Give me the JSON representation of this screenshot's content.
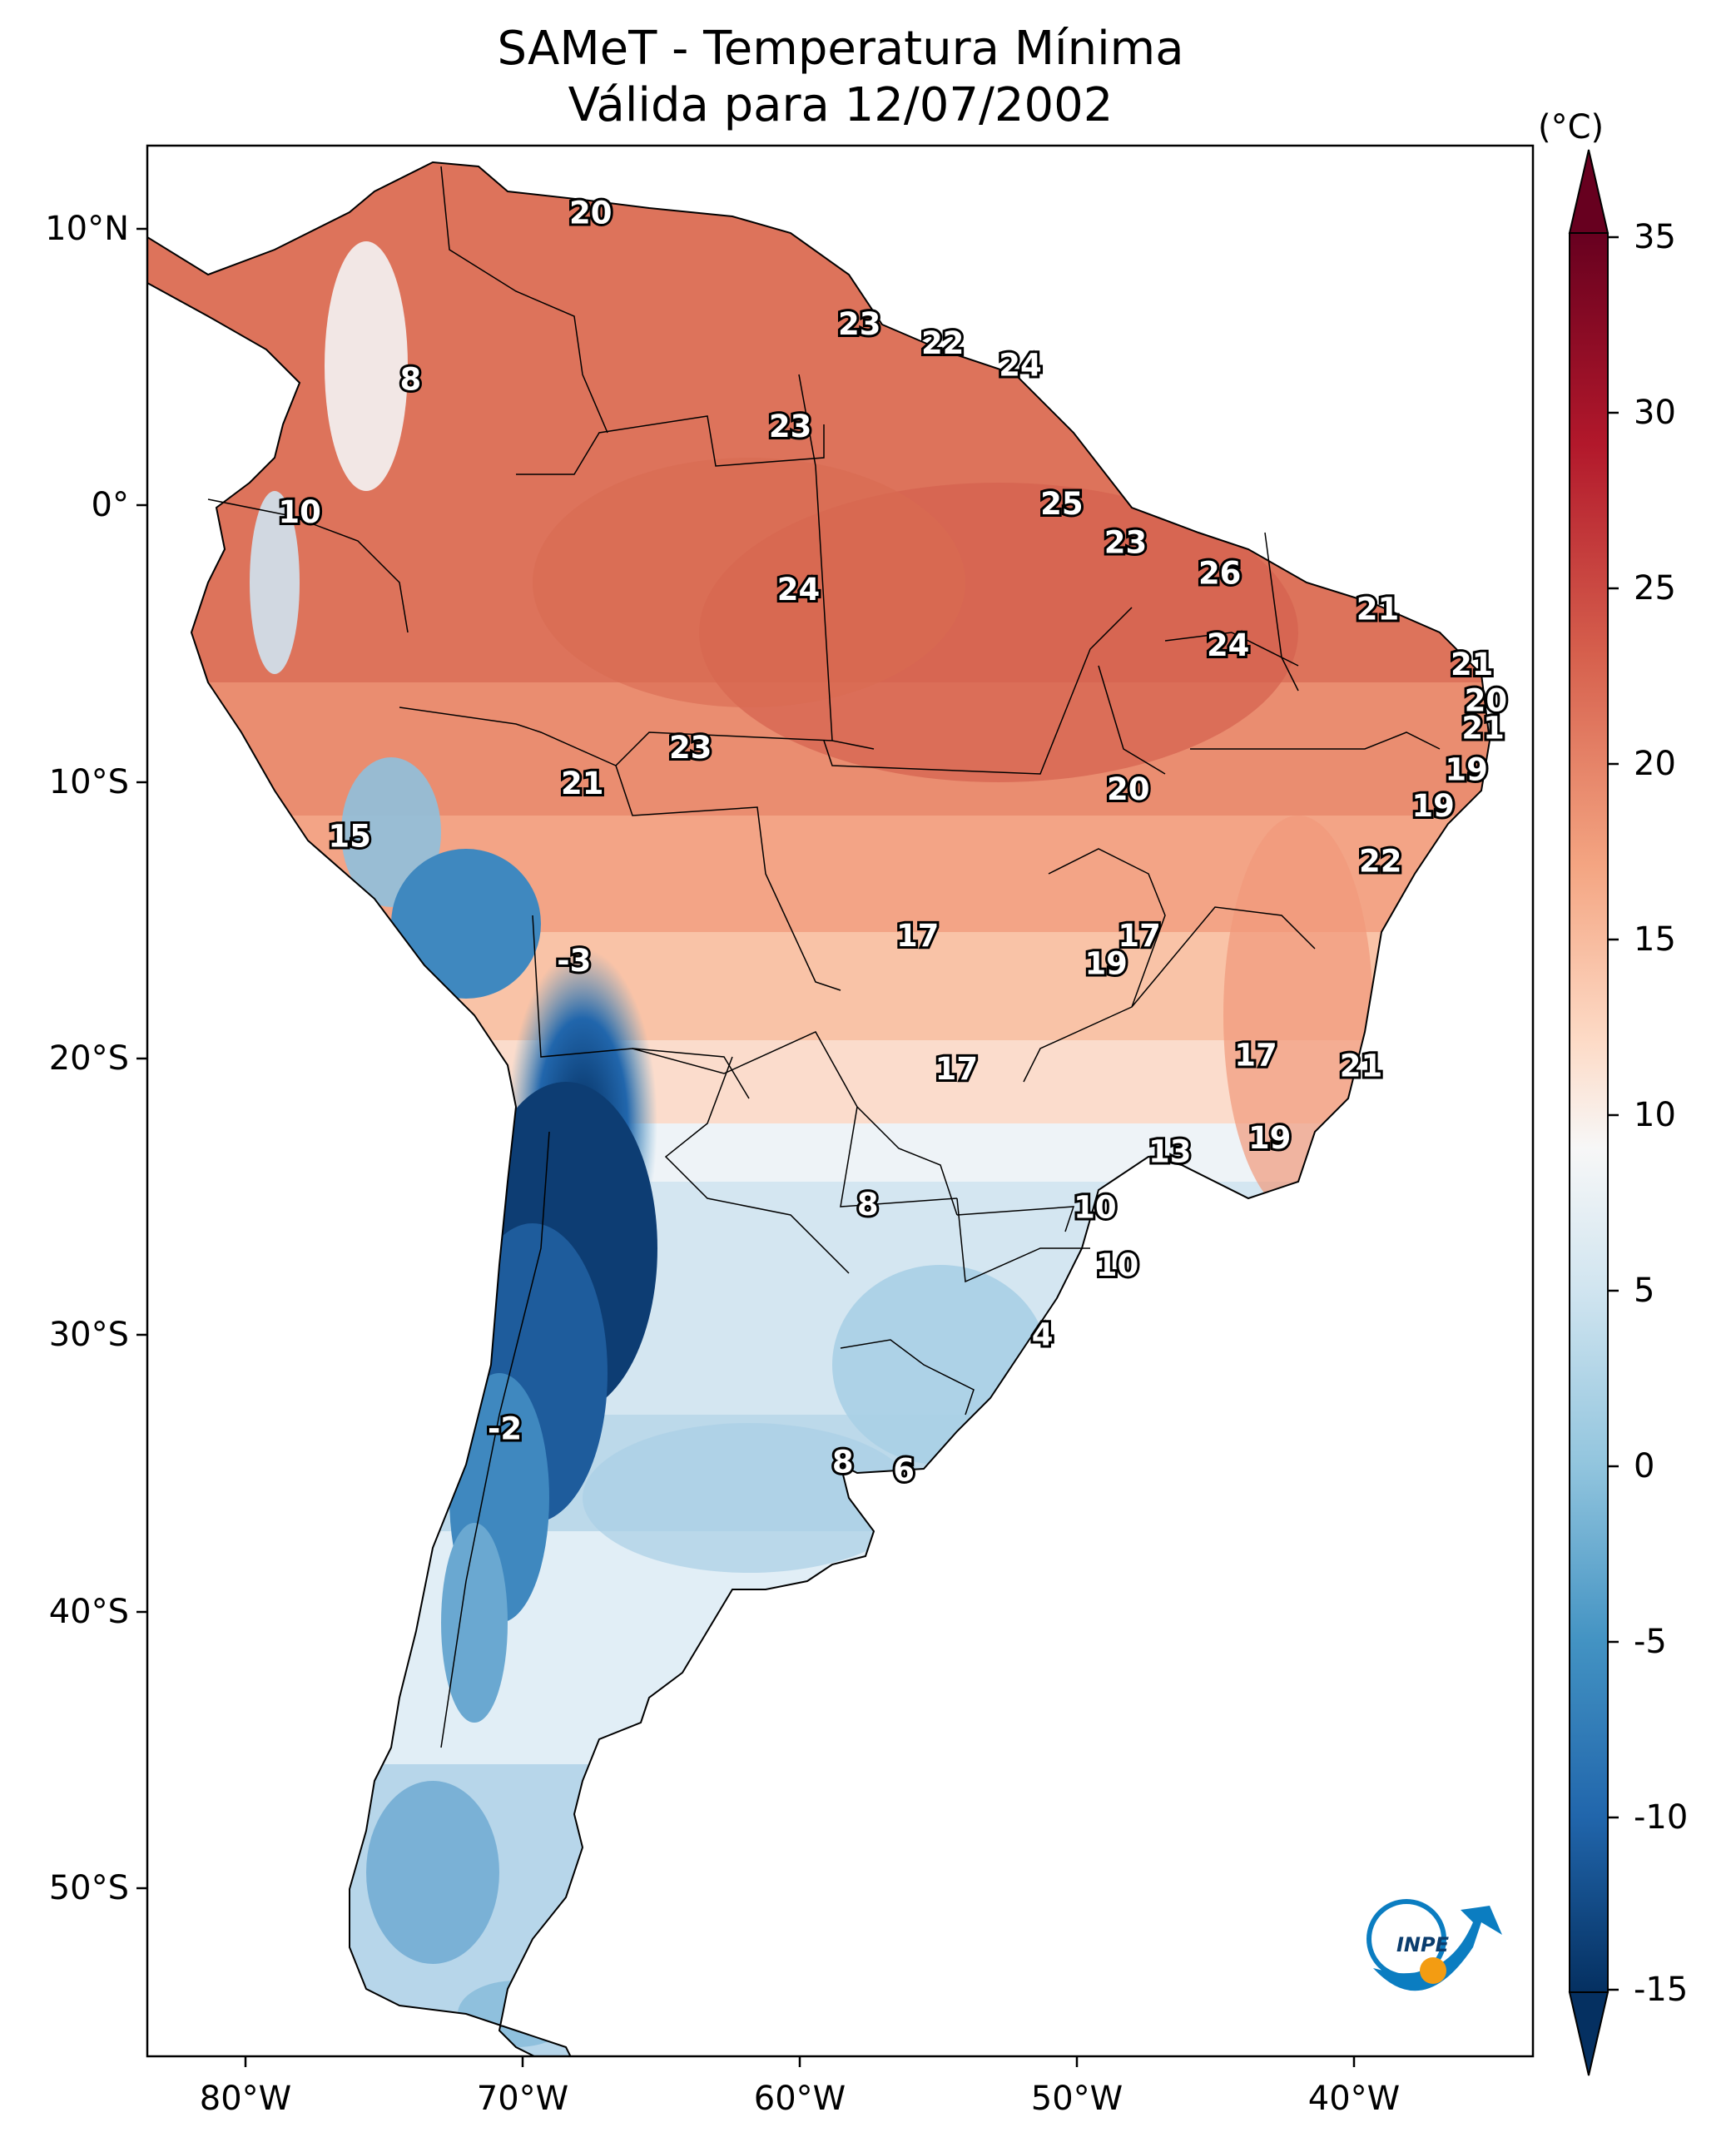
{
  "title": {
    "line1": "SAMeT - Temperatura Mínima",
    "line2": "Válida para 12/07/2002"
  },
  "map": {
    "region": "South America",
    "lat_ticks": [
      "10°N",
      "0°",
      "10°S",
      "20°S",
      "30°S",
      "40°S",
      "50°S"
    ],
    "lon_ticks": [
      "80°W",
      "70°W",
      "60°W",
      "50°W",
      "40°W"
    ]
  },
  "colorbar": {
    "unit": "(°C)",
    "ticks": [
      "35",
      "30",
      "25",
      "20",
      "15",
      "10",
      "5",
      "0",
      "-5",
      "-10",
      "-15"
    ],
    "range": [
      -15,
      35
    ],
    "cmap": "RdBu_r",
    "colors": {
      "dark_red": "#67001f",
      "red": "#b2182b",
      "orange_red": "#d6604d",
      "salmon": "#f4a582",
      "light_pink": "#fddbc7",
      "white": "#f7f7f7",
      "light_blue": "#d1e5f0",
      "sky_blue": "#92c5de",
      "blue": "#4393c3",
      "mid_blue": "#2166ac",
      "dark_blue": "#053061"
    }
  },
  "station_labels": [
    {
      "lon": -67.5,
      "lat": 10.5,
      "text": "20"
    },
    {
      "lon": -57.8,
      "lat": 6.5,
      "text": "23"
    },
    {
      "lon": -54.8,
      "lat": 5.8,
      "text": "22"
    },
    {
      "lon": -52.0,
      "lat": 5.0,
      "text": "24"
    },
    {
      "lon": -74.0,
      "lat": 4.5,
      "text": "8"
    },
    {
      "lon": -60.3,
      "lat": 2.8,
      "text": "23"
    },
    {
      "lon": -78.0,
      "lat": -0.3,
      "text": "10"
    },
    {
      "lon": -50.5,
      "lat": 0.0,
      "text": "25"
    },
    {
      "lon": -48.2,
      "lat": -1.4,
      "text": "23"
    },
    {
      "lon": -44.8,
      "lat": -2.5,
      "text": "26"
    },
    {
      "lon": -60.0,
      "lat": -3.1,
      "text": "24"
    },
    {
      "lon": -39.1,
      "lat": -3.8,
      "text": "21"
    },
    {
      "lon": -44.5,
      "lat": -5.1,
      "text": "24"
    },
    {
      "lon": -35.7,
      "lat": -5.8,
      "text": "21"
    },
    {
      "lon": -35.2,
      "lat": -7.1,
      "text": "20"
    },
    {
      "lon": -35.3,
      "lat": -8.1,
      "text": "21"
    },
    {
      "lon": -63.9,
      "lat": -8.8,
      "text": "23"
    },
    {
      "lon": -35.9,
      "lat": -9.6,
      "text": "19"
    },
    {
      "lon": -67.8,
      "lat": -10.1,
      "text": "21"
    },
    {
      "lon": -48.1,
      "lat": -10.3,
      "text": "20"
    },
    {
      "lon": -37.1,
      "lat": -10.9,
      "text": "19"
    },
    {
      "lon": -76.2,
      "lat": -12.0,
      "text": "15"
    },
    {
      "lon": -39.0,
      "lat": -12.9,
      "text": "22"
    },
    {
      "lon": -55.7,
      "lat": -15.6,
      "text": "17"
    },
    {
      "lon": -47.7,
      "lat": -15.6,
      "text": "17"
    },
    {
      "lon": -48.9,
      "lat": -16.6,
      "text": "19"
    },
    {
      "lon": -68.1,
      "lat": -16.5,
      "text": "-3"
    },
    {
      "lon": -43.5,
      "lat": -19.9,
      "text": "17"
    },
    {
      "lon": -54.3,
      "lat": -20.4,
      "text": "17"
    },
    {
      "lon": -39.7,
      "lat": -20.3,
      "text": "21"
    },
    {
      "lon": -43.0,
      "lat": -22.9,
      "text": "19"
    },
    {
      "lon": -46.6,
      "lat": -23.4,
      "text": "13"
    },
    {
      "lon": -57.5,
      "lat": -25.3,
      "text": "8"
    },
    {
      "lon": -49.3,
      "lat": -25.4,
      "text": "10"
    },
    {
      "lon": -48.5,
      "lat": -27.5,
      "text": "10"
    },
    {
      "lon": -51.2,
      "lat": -30.0,
      "text": "4"
    },
    {
      "lon": -70.6,
      "lat": -33.4,
      "text": "-2"
    },
    {
      "lon": -58.4,
      "lat": -34.6,
      "text": "8"
    },
    {
      "lon": -56.2,
      "lat": -34.9,
      "text": "6"
    }
  ],
  "logo": {
    "text": "INPE"
  }
}
